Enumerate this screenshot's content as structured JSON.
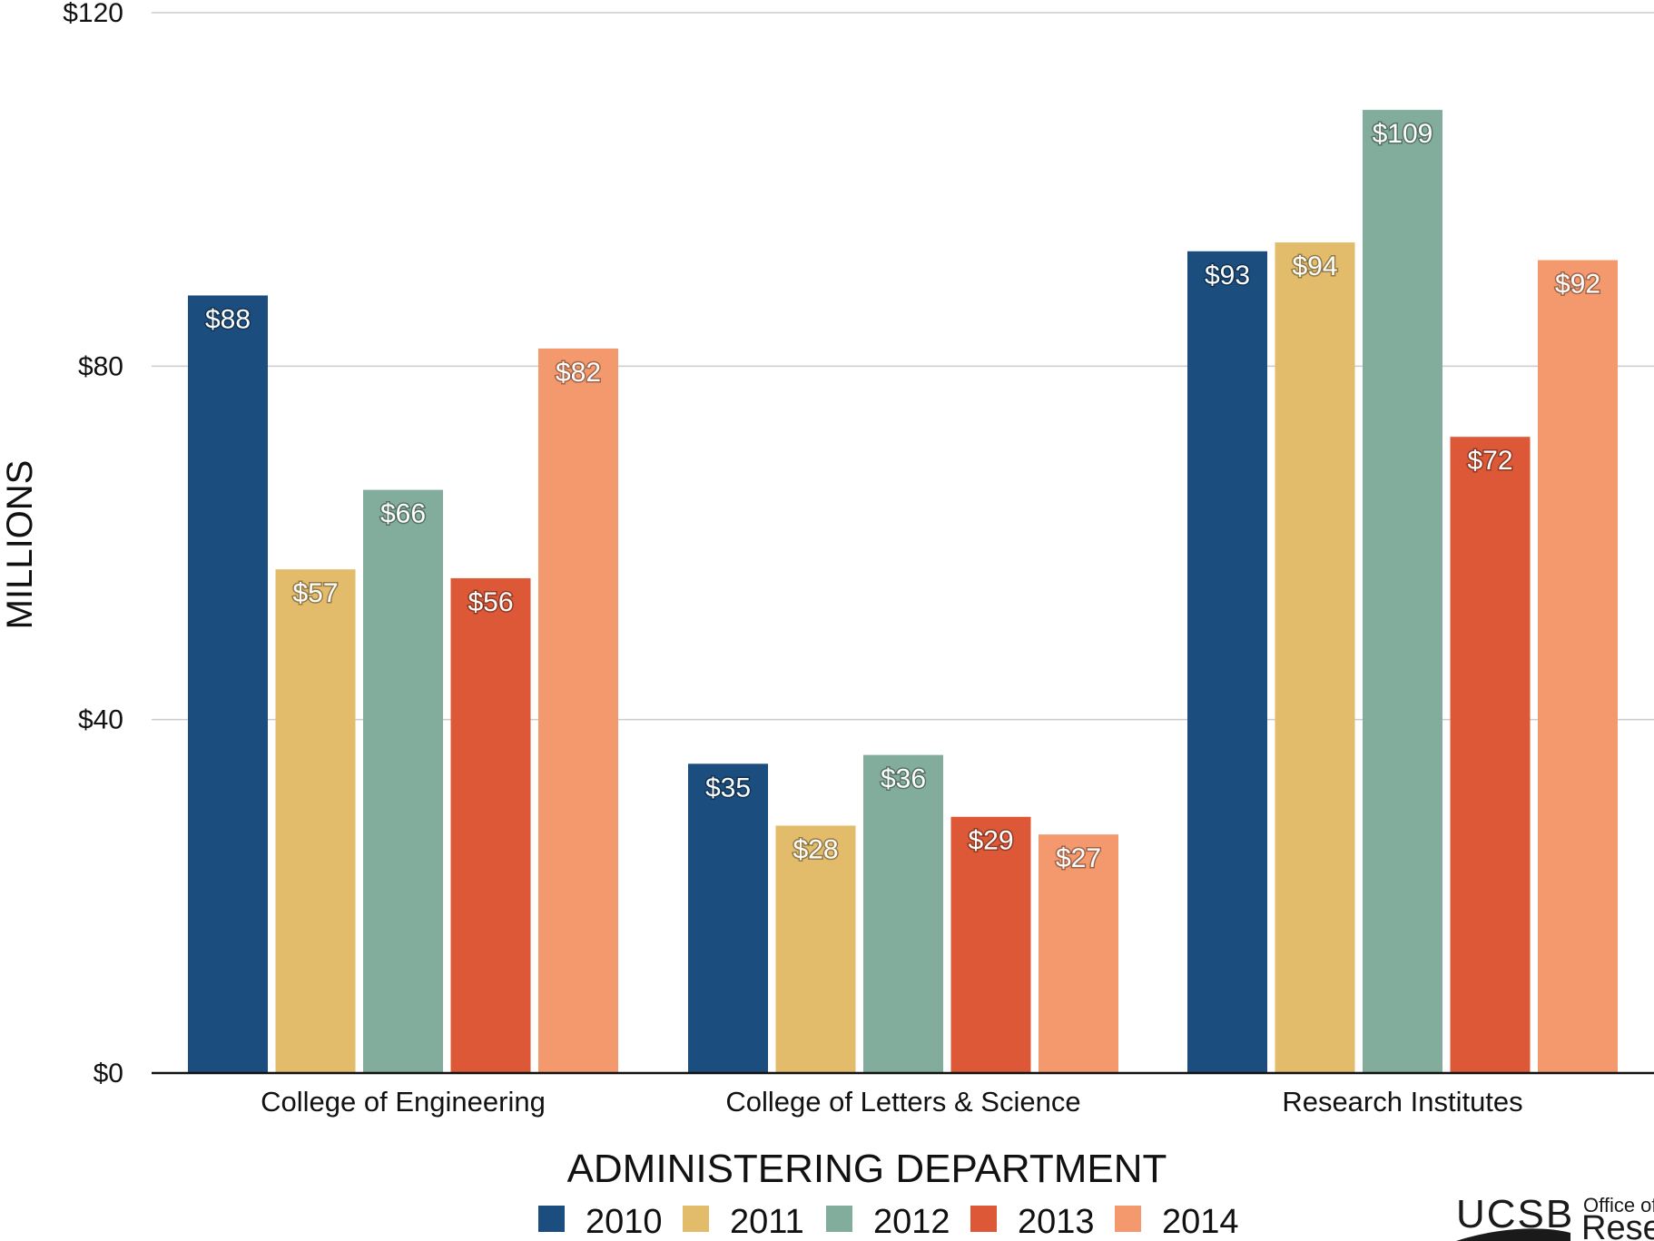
{
  "chart_data": {
    "type": "bar",
    "xlabel": "ADMINISTERING DEPARTMENT",
    "ylabel": "MILLIONS",
    "ylim": [
      0,
      120
    ],
    "yticks": [
      0,
      40,
      80,
      120
    ],
    "ytick_labels": [
      "$0",
      "$40",
      "$80",
      "$120"
    ],
    "grid": true,
    "legend_position": "bottom",
    "categories": [
      "College of Engineering",
      "College of Letters & Science",
      "Research Institutes"
    ],
    "series": [
      {
        "name": "2010",
        "color": "#1b4d7e",
        "values": [
          88,
          35,
          93
        ],
        "labels": [
          "$88",
          "$35",
          "$93"
        ]
      },
      {
        "name": "2011",
        "color": "#e2bb6b",
        "values": [
          57,
          28,
          94
        ],
        "labels": [
          "$57",
          "$28",
          "$94"
        ]
      },
      {
        "name": "2012",
        "color": "#82ac9b",
        "values": [
          66,
          36,
          109
        ],
        "labels": [
          "$66",
          "$36",
          "$109"
        ]
      },
      {
        "name": "2013",
        "color": "#dc5836",
        "values": [
          56,
          29,
          72
        ],
        "labels": [
          "$56",
          "$29",
          "$72"
        ]
      },
      {
        "name": "2014",
        "color": "#f4996d",
        "values": [
          82,
          27,
          92
        ],
        "labels": [
          "$82",
          "$27",
          "$92"
        ]
      }
    ]
  },
  "logo": {
    "main": "UCSB",
    "sub_line1": "Office of",
    "sub_line2": "Research"
  }
}
